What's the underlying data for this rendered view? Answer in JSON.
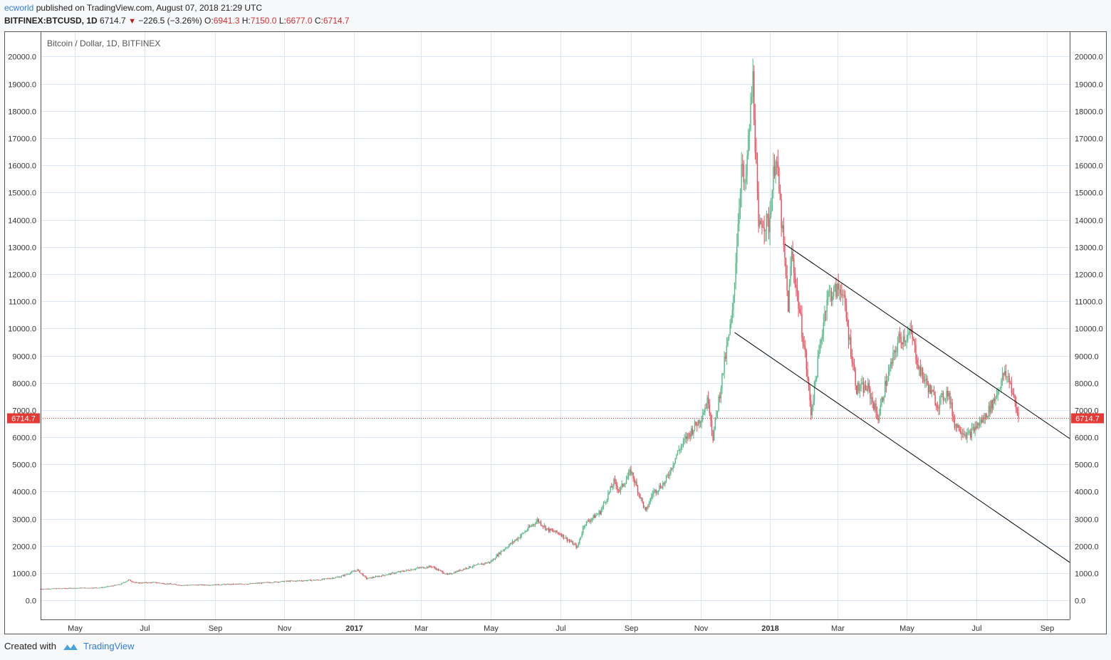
{
  "header": {
    "author": "ecworld",
    "published_text": "published on TradingView.com, August 07, 2018 21:29 UTC",
    "symbol": "BITFINEX:BTCUSD, 1D",
    "last": "6714.7",
    "change": "−226.5 (−3.26%)",
    "o_label": "O:",
    "o_value": "6941.3",
    "h_label": "H:",
    "h_value": "7150.0",
    "l_label": "L:",
    "l_value": "6677.0",
    "c_label": "C:",
    "c_value": "6714.7"
  },
  "footer": {
    "created_with": "Created with",
    "brand": "TradingView"
  },
  "colors": {
    "up": "#53b987",
    "down": "#eb4d5c",
    "grid": "#dbe6f0",
    "price_line": "#e53935",
    "trendline": "#000000"
  },
  "chart_data": {
    "type": "candlestick",
    "title": "Bitcoin / Dollar, 1D, BITFINEX",
    "xlabel": "",
    "ylabel": "",
    "ylim": [
      -700,
      20900
    ],
    "xlim": [
      "2016-04-01",
      "2018-09-21"
    ],
    "grid": true,
    "y_ticks": [
      0,
      1000,
      2000,
      3000,
      4000,
      5000,
      6000,
      7000,
      8000,
      9000,
      10000,
      11000,
      12000,
      13000,
      14000,
      15000,
      16000,
      17000,
      18000,
      19000,
      20000
    ],
    "x_ticks": [
      {
        "date": "2016-05-01",
        "label": "May"
      },
      {
        "date": "2016-07-01",
        "label": "Jul"
      },
      {
        "date": "2016-09-01",
        "label": "Sep"
      },
      {
        "date": "2016-11-01",
        "label": "Nov"
      },
      {
        "date": "2017-01-01",
        "label": "2017"
      },
      {
        "date": "2017-03-01",
        "label": "Mar"
      },
      {
        "date": "2017-05-01",
        "label": "May"
      },
      {
        "date": "2017-07-01",
        "label": "Jul"
      },
      {
        "date": "2017-09-01",
        "label": "Sep"
      },
      {
        "date": "2017-11-01",
        "label": "Nov"
      },
      {
        "date": "2018-01-01",
        "label": "2018"
      },
      {
        "date": "2018-03-01",
        "label": "Mar"
      },
      {
        "date": "2018-05-01",
        "label": "May"
      },
      {
        "date": "2018-07-01",
        "label": "Jul"
      },
      {
        "date": "2018-09-01",
        "label": "Sep"
      }
    ],
    "price_path": [
      [
        "2016-04-01",
        420
      ],
      [
        "2016-05-01",
        450
      ],
      [
        "2016-05-25",
        470
      ],
      [
        "2016-06-10",
        590
      ],
      [
        "2016-06-17",
        750
      ],
      [
        "2016-06-24",
        640
      ],
      [
        "2016-07-10",
        660
      ],
      [
        "2016-08-02",
        560
      ],
      [
        "2016-09-01",
        575
      ],
      [
        "2016-10-01",
        610
      ],
      [
        "2016-11-01",
        700
      ],
      [
        "2016-12-01",
        750
      ],
      [
        "2016-12-20",
        870
      ],
      [
        "2017-01-04",
        1120
      ],
      [
        "2017-01-12",
        800
      ],
      [
        "2017-02-01",
        970
      ],
      [
        "2017-02-25",
        1180
      ],
      [
        "2017-03-10",
        1250
      ],
      [
        "2017-03-24",
        940
      ],
      [
        "2017-04-10",
        1200
      ],
      [
        "2017-05-01",
        1420
      ],
      [
        "2017-05-10",
        1800
      ],
      [
        "2017-05-25",
        2300
      ],
      [
        "2017-06-11",
        2950
      ],
      [
        "2017-06-20",
        2600
      ],
      [
        "2017-07-01",
        2450
      ],
      [
        "2017-07-16",
        1950
      ],
      [
        "2017-07-22",
        2800
      ],
      [
        "2017-08-05",
        3250
      ],
      [
        "2017-08-17",
        4350
      ],
      [
        "2017-08-22",
        4050
      ],
      [
        "2017-09-01",
        4750
      ],
      [
        "2017-09-14",
        3250
      ],
      [
        "2017-09-20",
        3950
      ],
      [
        "2017-10-01",
        4350
      ],
      [
        "2017-10-12",
        5450
      ],
      [
        "2017-10-20",
        6000
      ],
      [
        "2017-11-01",
        6700
      ],
      [
        "2017-11-08",
        7400
      ],
      [
        "2017-11-12",
        6000
      ],
      [
        "2017-11-20",
        8200
      ],
      [
        "2017-11-29",
        10500
      ],
      [
        "2017-12-07",
        16000
      ],
      [
        "2017-12-10",
        15000
      ],
      [
        "2017-12-17",
        19200
      ],
      [
        "2017-12-22",
        13500
      ],
      [
        "2017-12-25",
        14000
      ],
      [
        "2017-12-31",
        13800
      ],
      [
        "2018-01-06",
        16500
      ],
      [
        "2018-01-10",
        14500
      ],
      [
        "2018-01-17",
        10800
      ],
      [
        "2018-01-20",
        12800
      ],
      [
        "2018-02-01",
        9000
      ],
      [
        "2018-02-06",
        6900
      ],
      [
        "2018-02-20",
        11200
      ],
      [
        "2018-03-05",
        11500
      ],
      [
        "2018-03-18",
        7800
      ],
      [
        "2018-03-28",
        7800
      ],
      [
        "2018-04-06",
        6700
      ],
      [
        "2018-04-12",
        7900
      ],
      [
        "2018-04-24",
        9600
      ],
      [
        "2018-05-05",
        9800
      ],
      [
        "2018-05-12",
        8500
      ],
      [
        "2018-05-28",
        7200
      ],
      [
        "2018-06-06",
        7700
      ],
      [
        "2018-06-12",
        6500
      ],
      [
        "2018-06-24",
        6050
      ],
      [
        "2018-07-01",
        6400
      ],
      [
        "2018-07-08",
        6700
      ],
      [
        "2018-07-17",
        7400
      ],
      [
        "2018-07-25",
        8300
      ],
      [
        "2018-07-30",
        8150
      ],
      [
        "2018-08-03",
        7400
      ],
      [
        "2018-08-07",
        6714.7
      ]
    ],
    "last_price": 6714.7,
    "trendlines": [
      {
        "start": [
          "2018-01-14",
          13100
        ],
        "end": [
          "2018-09-21",
          5950
        ]
      },
      {
        "start": [
          "2017-12-01",
          9850
        ],
        "end": [
          "2018-09-21",
          1400
        ]
      }
    ]
  }
}
